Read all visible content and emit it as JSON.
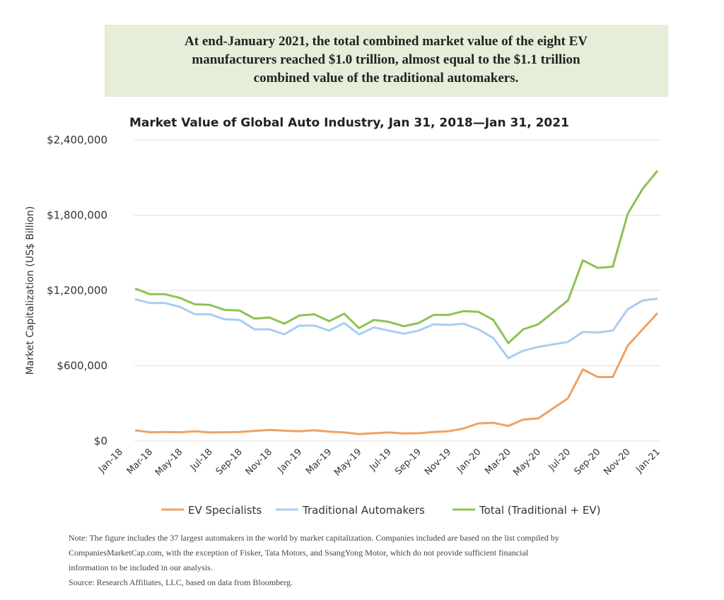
{
  "banner": [
    "At end-January 2021, the total combined market value of the eight EV",
    "manufacturers reached $1.0 trillion, almost equal to the $1.1 trillion",
    "combined value of the traditional automakers."
  ],
  "chart_data": {
    "type": "line",
    "title": "Market Value of Global Auto Industry, Jan 31, 2018—Jan 31, 2021",
    "y_label": "Market Capitalization (US$ Billion)",
    "categories": [
      "Jan-18",
      null,
      "Mar-18",
      null,
      "May-18",
      null,
      "Jul-18",
      null,
      "Sep-18",
      null,
      "Nov-18",
      null,
      "Jan-19",
      null,
      "Mar-19",
      null,
      "May-19",
      null,
      "Jul-19",
      null,
      "Sep-19",
      null,
      "Nov-19",
      null,
      "Jan-20",
      null,
      "Mar-20",
      null,
      "May-20",
      null,
      "Jul-20",
      null,
      "Sep-20",
      null,
      "Nov-20",
      null,
      "Jan-21"
    ],
    "series": [
      {
        "name": "EV Specialists",
        "color": "#f0a262",
        "values": [
          null,
          85000,
          70000,
          72000,
          70000,
          78000,
          68000,
          70000,
          72000,
          80000,
          88000,
          82000,
          78000,
          85000,
          75000,
          68000,
          55000,
          62000,
          68000,
          60000,
          62000,
          72000,
          78000,
          100000,
          140000,
          145000,
          120000,
          170000,
          180000,
          260000,
          340000,
          570000,
          510000,
          510000,
          760000,
          890000,
          1020000
        ]
      },
      {
        "name": "Traditional Automakers",
        "color": "#a9cdf0",
        "values": [
          null,
          1130000,
          1100000,
          1100000,
          1070000,
          1010000,
          1010000,
          970000,
          965000,
          890000,
          890000,
          850000,
          920000,
          920000,
          880000,
          940000,
          850000,
          905000,
          880000,
          855000,
          880000,
          930000,
          925000,
          935000,
          890000,
          820000,
          660000,
          720000,
          750000,
          770000,
          790000,
          870000,
          865000,
          880000,
          1050000,
          1120000,
          1135000
        ]
      },
      {
        "name": "Total (Traditional + EV)",
        "color": "#8dc352",
        "values": [
          null,
          1215000,
          1170000,
          1170000,
          1140000,
          1090000,
          1085000,
          1045000,
          1040000,
          975000,
          985000,
          935000,
          1000000,
          1010000,
          955000,
          1015000,
          900000,
          965000,
          950000,
          915000,
          940000,
          1005000,
          1005000,
          1035000,
          1030000,
          965000,
          780000,
          890000,
          930000,
          1025000,
          1120000,
          1440000,
          1380000,
          1390000,
          1810000,
          2010000,
          2155000
        ]
      }
    ],
    "ylim": [
      0,
      2400000
    ],
    "yticks": [
      {
        "value": 0,
        "label": "$0"
      },
      {
        "value": 600000,
        "label": "$600,000"
      },
      {
        "value": 1200000,
        "label": "$1,200,000"
      },
      {
        "value": 1800000,
        "label": "$1,800,000"
      },
      {
        "value": 2400000,
        "label": "$2,400,000"
      }
    ],
    "grid": true,
    "legend": "bottom"
  },
  "notes": [
    "Note: The figure includes the 37 largest automakers in the world by market capitalization. Companies included are based on the list compiled by",
    "CompaniesMarketCap.com, with the exception of Fisker, Tata Motors, and SsangYong Motor, which do not provide sufficient financial",
    "information to be included in our analysis.",
    "Source: Research Affiliates, LLC, based on data from Bloomberg."
  ]
}
